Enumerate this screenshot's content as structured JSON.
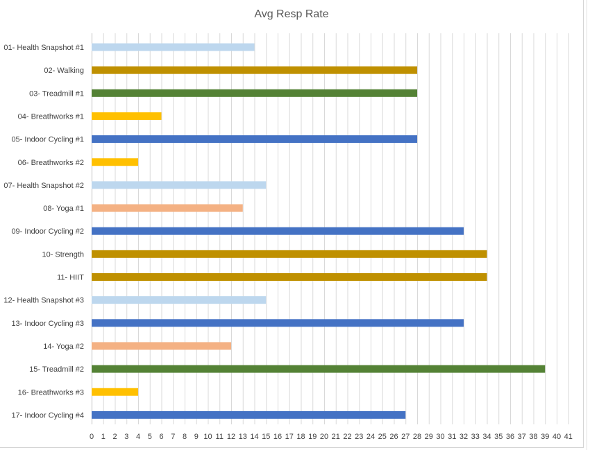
{
  "chart_data": {
    "type": "bar",
    "orientation": "horizontal",
    "title": "Avg Resp Rate",
    "xlabel": "",
    "ylabel": "",
    "xlim": [
      0,
      41
    ],
    "x_ticks": [
      0,
      1,
      2,
      3,
      4,
      5,
      6,
      7,
      8,
      9,
      10,
      11,
      12,
      13,
      14,
      15,
      16,
      17,
      18,
      19,
      20,
      21,
      22,
      23,
      24,
      25,
      26,
      27,
      28,
      29,
      30,
      31,
      32,
      33,
      34,
      35,
      36,
      37,
      38,
      39,
      40,
      41
    ],
    "grid": true,
    "legend": "none",
    "categories": [
      "01- Health Snapshot #1",
      "02- Walking",
      "03- Treadmill #1",
      "04- Breathworks #1",
      "05- Indoor Cycling #1",
      "06- Breathworks #2",
      "07- Health Snapshot #2",
      "08- Yoga #1",
      "09- Indoor Cycling #2",
      "10- Strength",
      "11- HIIT",
      "12- Health Snapshot #3",
      "13- Indoor Cycling #3",
      "14- Yoga #2",
      "15- Treadmill #2",
      "16- Breathworks #3",
      "17- Indoor Cycling #4"
    ],
    "values": [
      14,
      28,
      28,
      6,
      28,
      4,
      15,
      13,
      32,
      34,
      34,
      15,
      32,
      12,
      39,
      4,
      27
    ],
    "bar_colors": [
      "#bdd7ee",
      "#bf9000",
      "#548235",
      "#ffc000",
      "#4472c4",
      "#ffc000",
      "#bdd7ee",
      "#f4b183",
      "#4472c4",
      "#bf9000",
      "#bf9000",
      "#bdd7ee",
      "#4472c4",
      "#f4b183",
      "#548235",
      "#ffc000",
      "#4472c4"
    ],
    "gridline_color": "#d9d9d9",
    "axis_color": "#bfbfbf"
  }
}
